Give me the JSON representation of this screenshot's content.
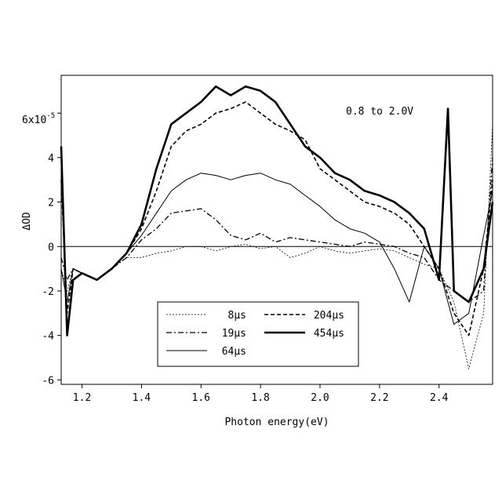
{
  "chart_data": {
    "type": "line",
    "xlabel": "Photon energy(eV)",
    "ylabel": "ΔOD",
    "annotation": "0.8 to 2.0V",
    "y_exponent_label": "6x10",
    "y_exponent_power": "-5",
    "xlim": [
      1.13,
      2.58
    ],
    "ylim": [
      -6.2,
      7.7
    ],
    "x_ticks": [
      1.2,
      1.4,
      1.6,
      1.8,
      2.0,
      2.2,
      2.4
    ],
    "x_tick_labels": [
      "1.2",
      "1.4",
      "1.6",
      "1.8",
      "2.0",
      "2.2",
      "2.4"
    ],
    "y_ticks": [
      -6,
      -4,
      -2,
      0,
      2,
      4
    ],
    "y_tick_labels": [
      "-6",
      "-4",
      "-2",
      "0",
      "2",
      "4"
    ],
    "y_top_tick": 6,
    "zero_line": true,
    "legend_position": "bottom-center",
    "series": [
      {
        "name": "8µs",
        "style": "dotted-thin",
        "x": [
          1.13,
          1.15,
          1.17,
          1.2,
          1.25,
          1.3,
          1.35,
          1.4,
          1.45,
          1.5,
          1.55,
          1.6,
          1.65,
          1.7,
          1.75,
          1.8,
          1.85,
          1.9,
          1.95,
          2.0,
          2.05,
          2.1,
          2.15,
          2.2,
          2.25,
          2.3,
          2.35,
          2.4,
          2.45,
          2.5,
          2.55,
          2.58
        ],
        "values": [
          -1.0,
          -2.0,
          -1.0,
          -1.2,
          -1.5,
          -1.0,
          -0.5,
          -0.5,
          -0.3,
          -0.2,
          0.0,
          0.0,
          -0.2,
          0.0,
          0.1,
          -0.1,
          0.0,
          -0.5,
          -0.3,
          0.0,
          -0.2,
          -0.3,
          -0.2,
          -0.1,
          -0.2,
          -0.5,
          -0.8,
          -1.0,
          -2.5,
          -5.5,
          -3.0,
          5.5
        ]
      },
      {
        "name": "19µs",
        "style": "dashdot",
        "x": [
          1.13,
          1.15,
          1.17,
          1.2,
          1.25,
          1.3,
          1.35,
          1.4,
          1.45,
          1.5,
          1.55,
          1.6,
          1.65,
          1.7,
          1.75,
          1.8,
          1.85,
          1.9,
          1.95,
          2.0,
          2.05,
          2.1,
          2.15,
          2.2,
          2.25,
          2.3,
          2.35,
          2.4,
          2.45,
          2.5,
          2.55,
          2.58
        ],
        "values": [
          -0.5,
          -1.5,
          -1.0,
          -1.2,
          -1.5,
          -1.0,
          -0.5,
          0.3,
          0.8,
          1.5,
          1.6,
          1.7,
          1.2,
          0.5,
          0.3,
          0.6,
          0.2,
          0.4,
          0.3,
          0.2,
          0.1,
          0.0,
          0.2,
          0.1,
          0.0,
          -0.3,
          -0.5,
          -1.5,
          -2.0,
          -2.5,
          -2.0,
          4.0
        ]
      },
      {
        "name": "64µs",
        "style": "solid-thin",
        "x": [
          1.13,
          1.15,
          1.17,
          1.2,
          1.25,
          1.3,
          1.35,
          1.4,
          1.45,
          1.5,
          1.55,
          1.6,
          1.65,
          1.7,
          1.75,
          1.8,
          1.85,
          1.9,
          1.95,
          2.0,
          2.05,
          2.1,
          2.15,
          2.2,
          2.25,
          2.3,
          2.35,
          2.4,
          2.45,
          2.5,
          2.55,
          2.58
        ],
        "values": [
          -1.0,
          -2.5,
          -1.0,
          -1.2,
          -1.5,
          -1.0,
          -0.3,
          0.5,
          1.5,
          2.5,
          3.0,
          3.3,
          3.2,
          3.0,
          3.2,
          3.3,
          3.0,
          2.8,
          2.3,
          1.8,
          1.2,
          0.8,
          0.6,
          0.2,
          -1.0,
          -2.5,
          0.0,
          -1.0,
          -3.5,
          -3.0,
          0.5,
          2.5
        ]
      },
      {
        "name": "204µs",
        "style": "dashed",
        "x": [
          1.13,
          1.15,
          1.17,
          1.2,
          1.25,
          1.3,
          1.35,
          1.4,
          1.45,
          1.5,
          1.55,
          1.6,
          1.65,
          1.7,
          1.75,
          1.8,
          1.85,
          1.9,
          1.95,
          2.0,
          2.05,
          2.1,
          2.15,
          2.2,
          2.25,
          2.3,
          2.35,
          2.4,
          2.45,
          2.5,
          2.55,
          2.58
        ],
        "values": [
          3.0,
          -3.0,
          -1.0,
          -1.2,
          -1.5,
          -1.0,
          -0.3,
          0.8,
          2.5,
          4.5,
          5.2,
          5.5,
          6.0,
          6.2,
          6.5,
          6.0,
          5.5,
          5.2,
          4.8,
          3.5,
          3.0,
          2.5,
          2.0,
          1.8,
          1.5,
          1.0,
          0.0,
          -1.0,
          -3.0,
          -4.0,
          -1.0,
          3.0
        ]
      },
      {
        "name": "454µs",
        "style": "solid-thick",
        "x": [
          1.13,
          1.15,
          1.17,
          1.2,
          1.25,
          1.3,
          1.35,
          1.4,
          1.45,
          1.5,
          1.55,
          1.6,
          1.65,
          1.7,
          1.75,
          1.8,
          1.85,
          1.9,
          1.95,
          2.0,
          2.05,
          2.1,
          2.15,
          2.2,
          2.25,
          2.3,
          2.35,
          2.4,
          2.43,
          2.45,
          2.5,
          2.55,
          2.58
        ],
        "values": [
          4.5,
          -4.0,
          -1.5,
          -1.2,
          -1.5,
          -1.0,
          -0.3,
          1.0,
          3.5,
          5.5,
          6.0,
          6.5,
          7.2,
          6.8,
          7.2,
          7.0,
          6.5,
          5.5,
          4.5,
          4.0,
          3.3,
          3.0,
          2.5,
          2.3,
          2.0,
          1.5,
          0.8,
          -1.5,
          6.2,
          -2.0,
          -2.5,
          -1.0,
          2.0
        ]
      }
    ]
  }
}
